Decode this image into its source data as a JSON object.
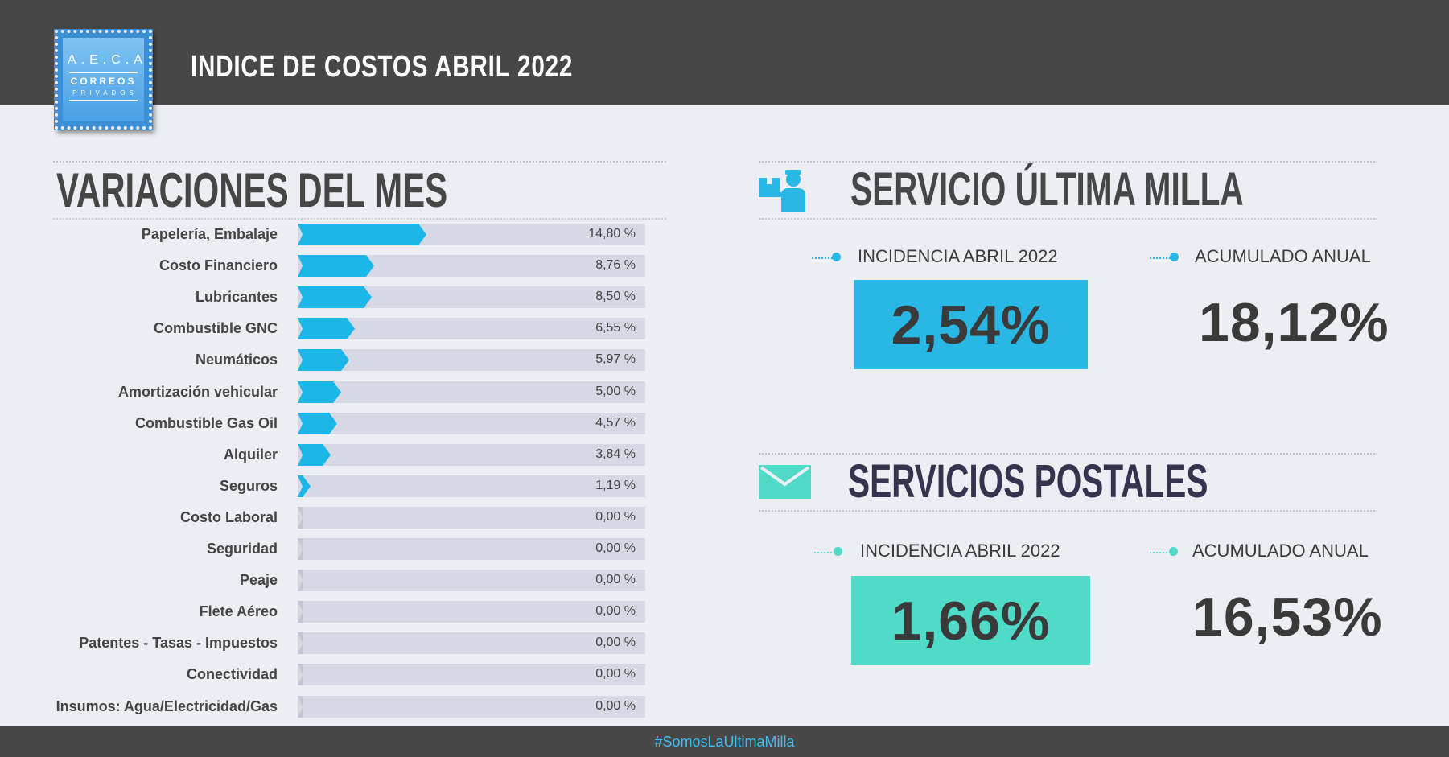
{
  "header": {
    "title": "INDICE DE COSTOS ABRIL 2022",
    "logo": {
      "line1": "A.E.C.A",
      "line2": "CORREOS",
      "line3": "PRIVADOS"
    }
  },
  "variaciones": {
    "title": "VARIACIONES DEL MES",
    "items": [
      {
        "label": "Papelería, Embalaje",
        "value": 14.8,
        "display": "14,80 %"
      },
      {
        "label": "Costo Financiero",
        "value": 8.76,
        "display": "8,76 %"
      },
      {
        "label": "Lubricantes",
        "value": 8.5,
        "display": "8,50 %"
      },
      {
        "label": "Combustible GNC",
        "value": 6.55,
        "display": "6,55 %"
      },
      {
        "label": "Neumáticos",
        "value": 5.97,
        "display": "5,97 %"
      },
      {
        "label": "Amortización vehicular",
        "value": 5.0,
        "display": "5,00 %"
      },
      {
        "label": "Combustible Gas Oil",
        "value": 4.57,
        "display": "4,57 %"
      },
      {
        "label": "Alquiler",
        "value": 3.84,
        "display": "3,84 %"
      },
      {
        "label": "Seguros",
        "value": 1.19,
        "display": "1,19 %"
      },
      {
        "label": "Costo Laboral",
        "value": 0,
        "display": "0,00 %"
      },
      {
        "label": "Seguridad",
        "value": 0,
        "display": "0,00 %"
      },
      {
        "label": "Peaje",
        "value": 0,
        "display": "0,00 %"
      },
      {
        "label": "Flete Aéreo",
        "value": 0,
        "display": "0,00 %"
      },
      {
        "label": "Patentes  - Tasas  - Impuestos",
        "value": 0,
        "display": "0,00 %"
      },
      {
        "label": "Conectividad",
        "value": 0,
        "display": "0,00 %"
      },
      {
        "label": "Insumos: Agua/Electricidad/Gas",
        "value": 0,
        "display": "0,00 %"
      }
    ]
  },
  "ultima_milla": {
    "title": "SERVICIO ÚLTIMA MILLA",
    "icon": "delivery-person-icon",
    "incidencia_label": "INCIDENCIA ABRIL 2022",
    "incidencia_value": "2,54%",
    "acumulado_label": "ACUMULADO ANUAL",
    "acumulado_value": "18,12%",
    "accent": "#29b8e5"
  },
  "postales": {
    "title": "SERVICIOS POSTALES",
    "icon": "envelope-icon",
    "incidencia_label": "INCIDENCIA ABRIL 2022",
    "incidencia_value": "1,66%",
    "acumulado_label": "ACUMULADO ANUAL",
    "acumulado_value": "16,53%",
    "accent": "#4fdbc8"
  },
  "footer": {
    "hashtag": "#SomosLaUltimaMilla"
  },
  "colors": {
    "bar": "#1ab7e8",
    "track": "#d6d9e3",
    "header_bg": "#484748"
  }
}
